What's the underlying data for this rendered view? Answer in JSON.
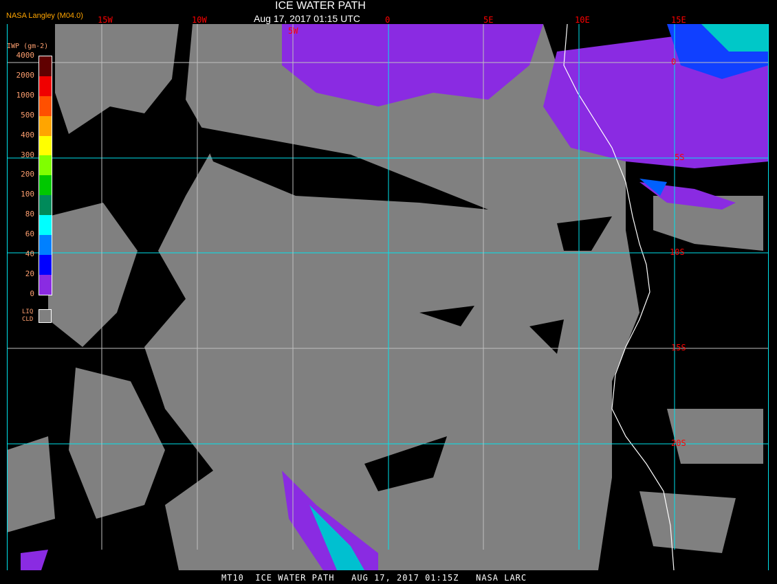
{
  "header": {
    "title": "ICE WATER PATH",
    "datetime": "Aug 17, 2017 01:15 UTC",
    "source": "NASA Langley (M04.0)"
  },
  "map": {
    "longitude_labels": [
      "15W",
      "10W",
      "5W",
      "0",
      "5E",
      "10E",
      "15E"
    ],
    "latitude_labels": [
      "0",
      "5S",
      "10S",
      "15S",
      "20S"
    ],
    "colors": {
      "background": "#000000",
      "liquid_cloud": "#808080",
      "clear": "#000000",
      "grid_primary": "#00e5ee",
      "grid_secondary": "#c0c0c0",
      "coastline": "#ffffff",
      "label": "#ff0000"
    }
  },
  "legend": {
    "unit": "IWP (gm-2)",
    "ticks": [
      "4000",
      "2000",
      "1000",
      "500",
      "400",
      "300",
      "200",
      "100",
      "80",
      "60",
      "40",
      "20",
      "0"
    ],
    "colors": [
      "#600000",
      "#f00000",
      "#ff5000",
      "#ffa500",
      "#ffff00",
      "#80ff00",
      "#00c800",
      "#008a5a",
      "#00ffff",
      "#0080ff",
      "#0000ff",
      "#8a2be2"
    ],
    "liquid_cloud_label": [
      "LIQ",
      "CLD"
    ]
  },
  "footer": {
    "text": "MT10  ICE WATER PATH   AUG 17, 2017 01:15Z   NASA LARC"
  }
}
